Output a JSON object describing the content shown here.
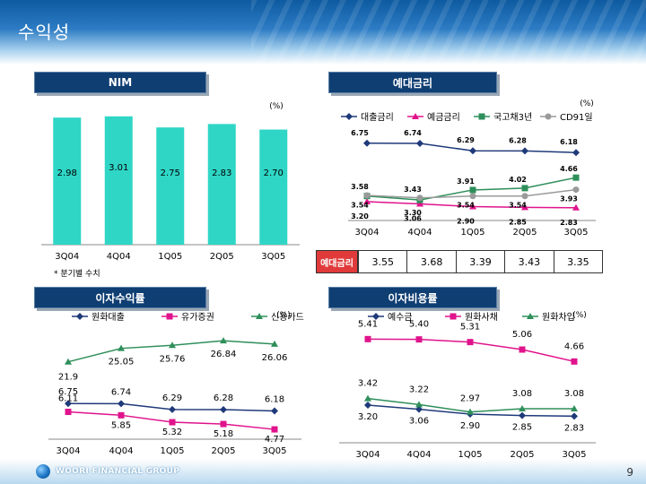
{
  "page": {
    "title": "수익성",
    "page_number": "9",
    "logo_text": "WOORI FINANCIAL GROUP"
  },
  "labels": {
    "nim_tag": "NIM",
    "rate_tag": "예대금리",
    "interest_income_tag": "이자수익률",
    "interest_cost_tag": "이자비용률",
    "nim_table_header": "예대금리"
  },
  "nim_table": [
    "3.55",
    "3.68",
    "3.39",
    "3.43",
    "3.35"
  ],
  "colors": {
    "header_blue": "#0d5aa0",
    "tag_navy": "#0f3e72",
    "bar_teal": "#2fd6c6",
    "navy_line": "#1f3a7a",
    "magenta_line": "#e0138c",
    "green_line": "#2e8f5a",
    "gray_line": "#9a9a9a"
  },
  "chart_data": [
    {
      "id": "nim",
      "type": "bar",
      "categories": [
        "3Q04",
        "4Q04",
        "1Q05",
        "2Q05",
        "3Q05"
      ],
      "values": [
        2.98,
        3.01,
        2.75,
        2.83,
        2.7
      ],
      "value_labels": [
        "2.98",
        "3.01",
        "2.75",
        "2.83",
        "2.70"
      ],
      "unit": "(%)",
      "note": "* 분기별 수치",
      "ylim": [
        0,
        3.3
      ]
    },
    {
      "id": "deposit_loan_rates",
      "type": "line",
      "categories": [
        "3Q04",
        "4Q04",
        "1Q05",
        "2Q05",
        "3Q05"
      ],
      "unit": "(%)",
      "ylim": [
        2.6,
        7.5
      ],
      "series": [
        {
          "name": "대출금리",
          "color": "#1f3a7a",
          "marker": "diamond",
          "values": [
            6.75,
            6.74,
            6.29,
            6.28,
            6.18
          ],
          "labels": [
            "6.75",
            "6.74",
            "6.29",
            "6.28",
            "6.18"
          ]
        },
        {
          "name": "예금금리",
          "color": "#e0138c",
          "marker": "triangle",
          "values": [
            3.2,
            3.06,
            2.9,
            2.85,
            2.83
          ],
          "labels": [
            "3.20",
            "3.06",
            "2.90",
            "2.85",
            "2.83"
          ]
        },
        {
          "name": "국고채3년",
          "color": "#2e8f5a",
          "marker": "square",
          "values": [
            3.54,
            3.3,
            3.91,
            4.02,
            4.66
          ],
          "labels": [
            "3.54",
            "3.30",
            "3.91",
            "4.02",
            "4.66"
          ]
        },
        {
          "name": "CD91일",
          "color": "#9a9a9a",
          "marker": "circle",
          "values": [
            3.58,
            3.43,
            3.54,
            3.54,
            3.93
          ],
          "labels": [
            "3.58",
            "3.43",
            "3.54",
            "3.54",
            "3.93"
          ]
        }
      ]
    },
    {
      "id": "interest_income",
      "type": "line",
      "categories": [
        "3Q04",
        "4Q04",
        "1Q05",
        "2Q05",
        "3Q05"
      ],
      "unit": "(%)",
      "series": [
        {
          "name": "원화대출",
          "color": "#1f3a7a",
          "marker": "diamond",
          "values": [
            6.75,
            6.74,
            6.29,
            6.28,
            6.18
          ],
          "labels": [
            "6.75",
            "6.74",
            "6.29",
            "6.28",
            "6.18"
          ]
        },
        {
          "name": "유가증권",
          "color": "#e0138c",
          "marker": "square",
          "values": [
            6.11,
            5.85,
            5.32,
            5.18,
            4.77
          ],
          "labels": [
            "6.11",
            "5.85",
            "5.32",
            "5.18",
            "4.77"
          ]
        },
        {
          "name": "신용카드",
          "color": "#2e8f5a",
          "marker": "triangle",
          "values": [
            21.9,
            25.05,
            25.76,
            26.84,
            26.06
          ],
          "labels": [
            "21.9",
            "25.05",
            "25.76",
            "26.84",
            "26.06"
          ]
        }
      ]
    },
    {
      "id": "interest_cost",
      "type": "line",
      "categories": [
        "3Q04",
        "4Q04",
        "1Q05",
        "2Q05",
        "3Q05"
      ],
      "unit": "(%)",
      "series": [
        {
          "name": "예수금",
          "color": "#1f3a7a",
          "marker": "diamond",
          "values": [
            3.2,
            3.06,
            2.9,
            2.85,
            2.83
          ],
          "labels": [
            "3.20",
            "3.06",
            "2.90",
            "2.85",
            "2.83"
          ]
        },
        {
          "name": "원화사채",
          "color": "#e0138c",
          "marker": "square",
          "values": [
            5.41,
            5.4,
            5.31,
            5.06,
            4.66
          ],
          "labels": [
            "5.41",
            "5.40",
            "5.31",
            "5.06",
            "4.66"
          ]
        },
        {
          "name": "원화차입",
          "color": "#2e8f5a",
          "marker": "triangle",
          "values": [
            3.42,
            3.22,
            2.97,
            3.08,
            3.08
          ],
          "labels": [
            "3.42",
            "3.22",
            "2.97",
            "3.08",
            "3.08"
          ]
        }
      ]
    }
  ]
}
